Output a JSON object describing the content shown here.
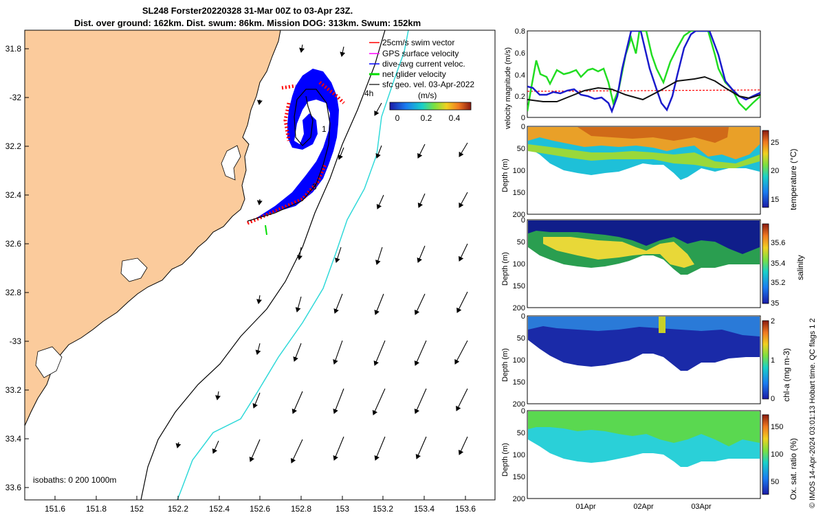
{
  "header": {
    "line1": "SL248 Forster20220328 31-Mar 00Z to 03-Apr 23Z.",
    "line2": "Dist. over ground: 162km. Dist. swum: 86km. Mission DOG: 313km. Swum: 152km"
  },
  "map": {
    "lon_ticks": [
      "151.6",
      "151.8",
      "152",
      "152.2",
      "152.4",
      "152.6",
      "152.8",
      "153",
      "153.2",
      "153.4",
      "153.6"
    ],
    "lat_ticks": [
      "31.8",
      "-32",
      "32.2",
      "32.4",
      "32.6",
      "32.8",
      "-33",
      "33.2",
      "33.4",
      "33.6"
    ],
    "isobaths_label": "isobaths: 0   200  1000m",
    "track_labels": [
      "1",
      "3",
      "4h"
    ],
    "colors": {
      "land": "#fbcb9c",
      "sea": "#ffffff",
      "coast": "#000000",
      "isobath_200": "#2fd9d9",
      "isobath_1000": "#000000"
    }
  },
  "legend": {
    "items": [
      {
        "label": "25cm/s swim vector",
        "color": "#ff0000"
      },
      {
        "label": "GPS surface velocity",
        "color": "#ff00ff"
      },
      {
        "label": "dive-avg current veloc.",
        "color": "#0000ff"
      },
      {
        "label": "net glider velocity",
        "color": "#00dd00"
      },
      {
        "label": "sfc geo. vel. 03-Apr-2022",
        "color": "#000000"
      }
    ],
    "colorbar_unit": "(m/s)",
    "colorbar_ticks": [
      "0",
      "0.2",
      "0.4"
    ]
  },
  "velocity_panel": {
    "ylabel": "velocity magnitude (m/s)",
    "yticks": [
      "0.8",
      "0.6",
      "0.4",
      "0.2",
      "0"
    ]
  },
  "sections": [
    {
      "quantity": "temperature (°C)",
      "ylabel": "Depth (m)",
      "depth_ticks": [
        "0",
        "50",
        "100",
        "150",
        "200"
      ],
      "cbar_ticks": [
        "25",
        "20",
        "15"
      ]
    },
    {
      "quantity": "salinity",
      "ylabel": "Depth (m)",
      "depth_ticks": [
        "0",
        "50",
        "100",
        "150",
        "200"
      ],
      "cbar_ticks": [
        "35.6",
        "35.4",
        "35.2",
        "35"
      ]
    },
    {
      "quantity": "chl-a (mg m-3)",
      "ylabel": "Depth (m)",
      "depth_ticks": [
        "0",
        "50",
        "100",
        "150",
        "200"
      ],
      "cbar_ticks": [
        "2",
        "1",
        "0"
      ]
    },
    {
      "quantity": "Ox. sat. ratio (%)",
      "ylabel": "Depth (m)",
      "depth_ticks": [
        "0",
        "50",
        "100",
        "150",
        "200"
      ],
      "cbar_ticks": [
        "150",
        "100",
        "50"
      ]
    }
  ],
  "time_axis": [
    "01Apr",
    "02Apr",
    "03Apr"
  ],
  "credit": "© IMOS 14-Apr-2024 03:01:13 Hobart time. QC flags 1  2"
}
